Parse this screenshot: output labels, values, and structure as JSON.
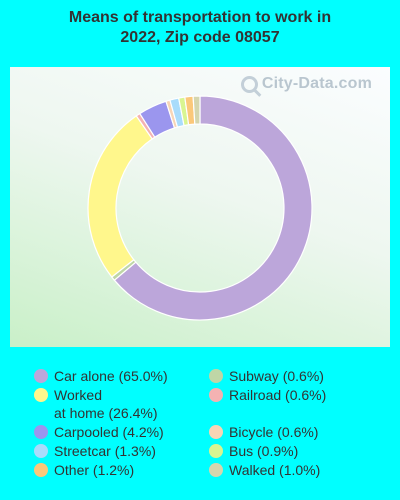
{
  "chart_data": {
    "type": "pie",
    "title": [
      "Means of transportation to work in",
      "2022, Zip code 08057"
    ],
    "watermark": "City-Data.com",
    "legend_placement": "bottom",
    "slices": [
      {
        "label": "Car alone",
        "value": 65.0,
        "display": "Car alone (65.0%)",
        "color": "#bca6da"
      },
      {
        "label": "Subway",
        "value": 0.6,
        "display": "Subway (0.6%)",
        "color": "#bfd6a6"
      },
      {
        "label": "Worked at home",
        "value": 26.4,
        "display_lines": [
          "Worked",
          "at home (26.4%)"
        ],
        "color": "#fff78c"
      },
      {
        "label": "Railroad",
        "value": 0.6,
        "display": "Railroad (0.6%)",
        "color": "#f4b2b2"
      },
      {
        "label": "Carpooled",
        "value": 4.2,
        "display": "Carpooled (4.2%)",
        "color": "#9b96ee"
      },
      {
        "label": "Bicycle",
        "value": 0.6,
        "display": "Bicycle (0.6%)",
        "color": "#f7d5b5"
      },
      {
        "label": "Streetcar",
        "value": 1.3,
        "display": "Streetcar (1.3%)",
        "color": "#a9dcfb"
      },
      {
        "label": "Bus",
        "value": 0.9,
        "display": "Bus (0.9%)",
        "color": "#d9f591"
      },
      {
        "label": "Other",
        "value": 1.2,
        "display": "Other (1.2%)",
        "color": "#fbc87a"
      },
      {
        "label": "Walked",
        "value": 1.0,
        "display": "Walked (1.0%)",
        "color": "#d5d6ae"
      }
    ],
    "draw_order": [
      "Car alone",
      "Subway",
      "Worked at home",
      "Railroad",
      "Carpooled",
      "Bicycle",
      "Streetcar",
      "Bus",
      "Other",
      "Walked"
    ]
  }
}
